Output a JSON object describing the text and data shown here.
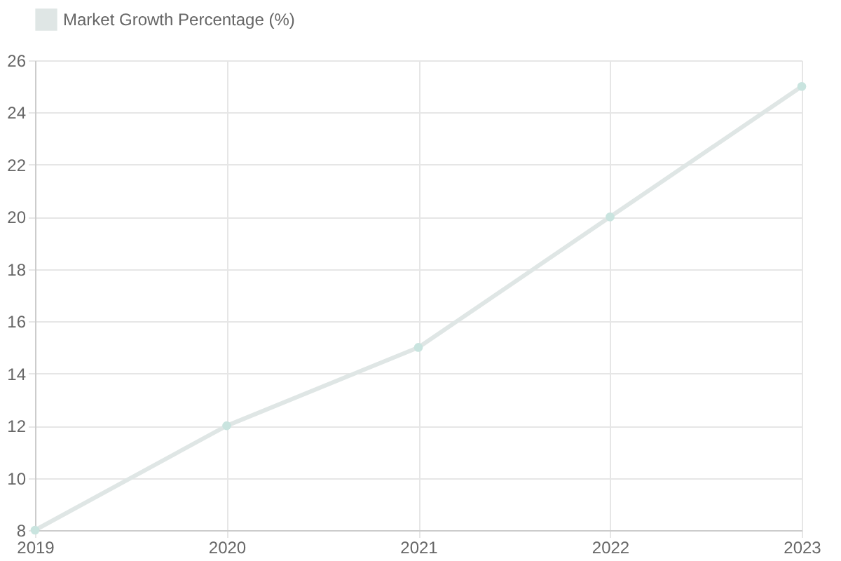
{
  "chart_data": {
    "type": "line",
    "categories": [
      "2019",
      "2020",
      "2021",
      "2022",
      "2023"
    ],
    "series": [
      {
        "name": "Market Growth Percentage (%)",
        "color": "#dfe6e5",
        "values": [
          8,
          12,
          15,
          20,
          25
        ]
      }
    ],
    "ylim": [
      8,
      26
    ],
    "yticks": [
      8,
      10,
      12,
      14,
      16,
      18,
      20,
      22,
      24,
      26
    ],
    "grid": true,
    "legend": "top",
    "marker": "circle"
  }
}
